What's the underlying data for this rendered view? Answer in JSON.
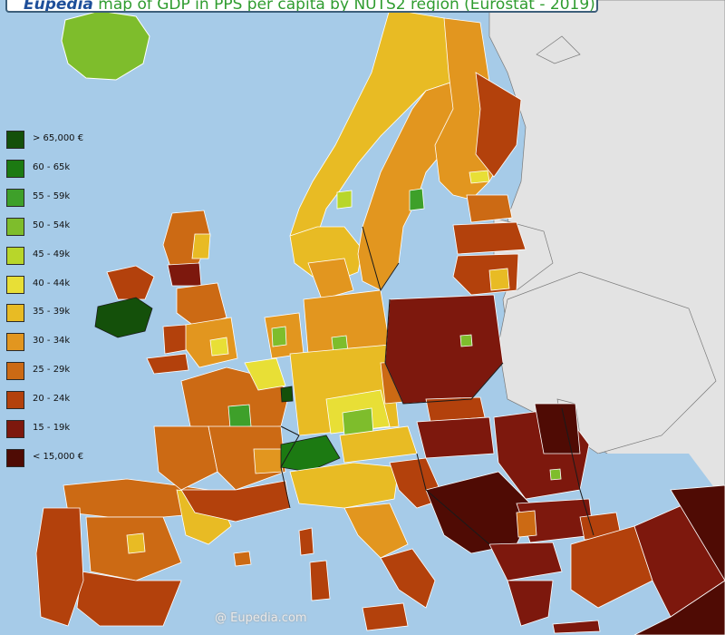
{
  "title": {
    "brand": "Eupedia",
    "text": " map of GDP in PPS per capita by NUTS2 region (Eurostat - 2019)"
  },
  "legend": [
    {
      "label": "> 65,000 €",
      "color": "#14500a"
    },
    {
      "label": "60 - 65k",
      "color": "#1c7a12"
    },
    {
      "label": "55 - 59k",
      "color": "#3ea02a"
    },
    {
      "label": "50 - 54k",
      "color": "#7ebd2c"
    },
    {
      "label": "45 - 49k",
      "color": "#b8d62a"
    },
    {
      "label": "40 - 44k",
      "color": "#e8df36"
    },
    {
      "label": "35 - 39k",
      "color": "#e8bb24"
    },
    {
      "label": "30 - 34k",
      "color": "#e2961f"
    },
    {
      "label": "25 - 29k",
      "color": "#cc6a14"
    },
    {
      "label": "20 - 24k",
      "color": "#b3410c"
    },
    {
      "label": "15 - 19k",
      "color": "#7d180d"
    },
    {
      "label": "< 15,000 €",
      "color": "#4f0b04"
    }
  ],
  "colors": {
    "sea": "#a6cbe8",
    "non_eu": "#e3e3e3",
    "border": "#ffffff",
    "national_border": "#1a1a1a"
  },
  "watermark": "@ Eupedia.com"
}
